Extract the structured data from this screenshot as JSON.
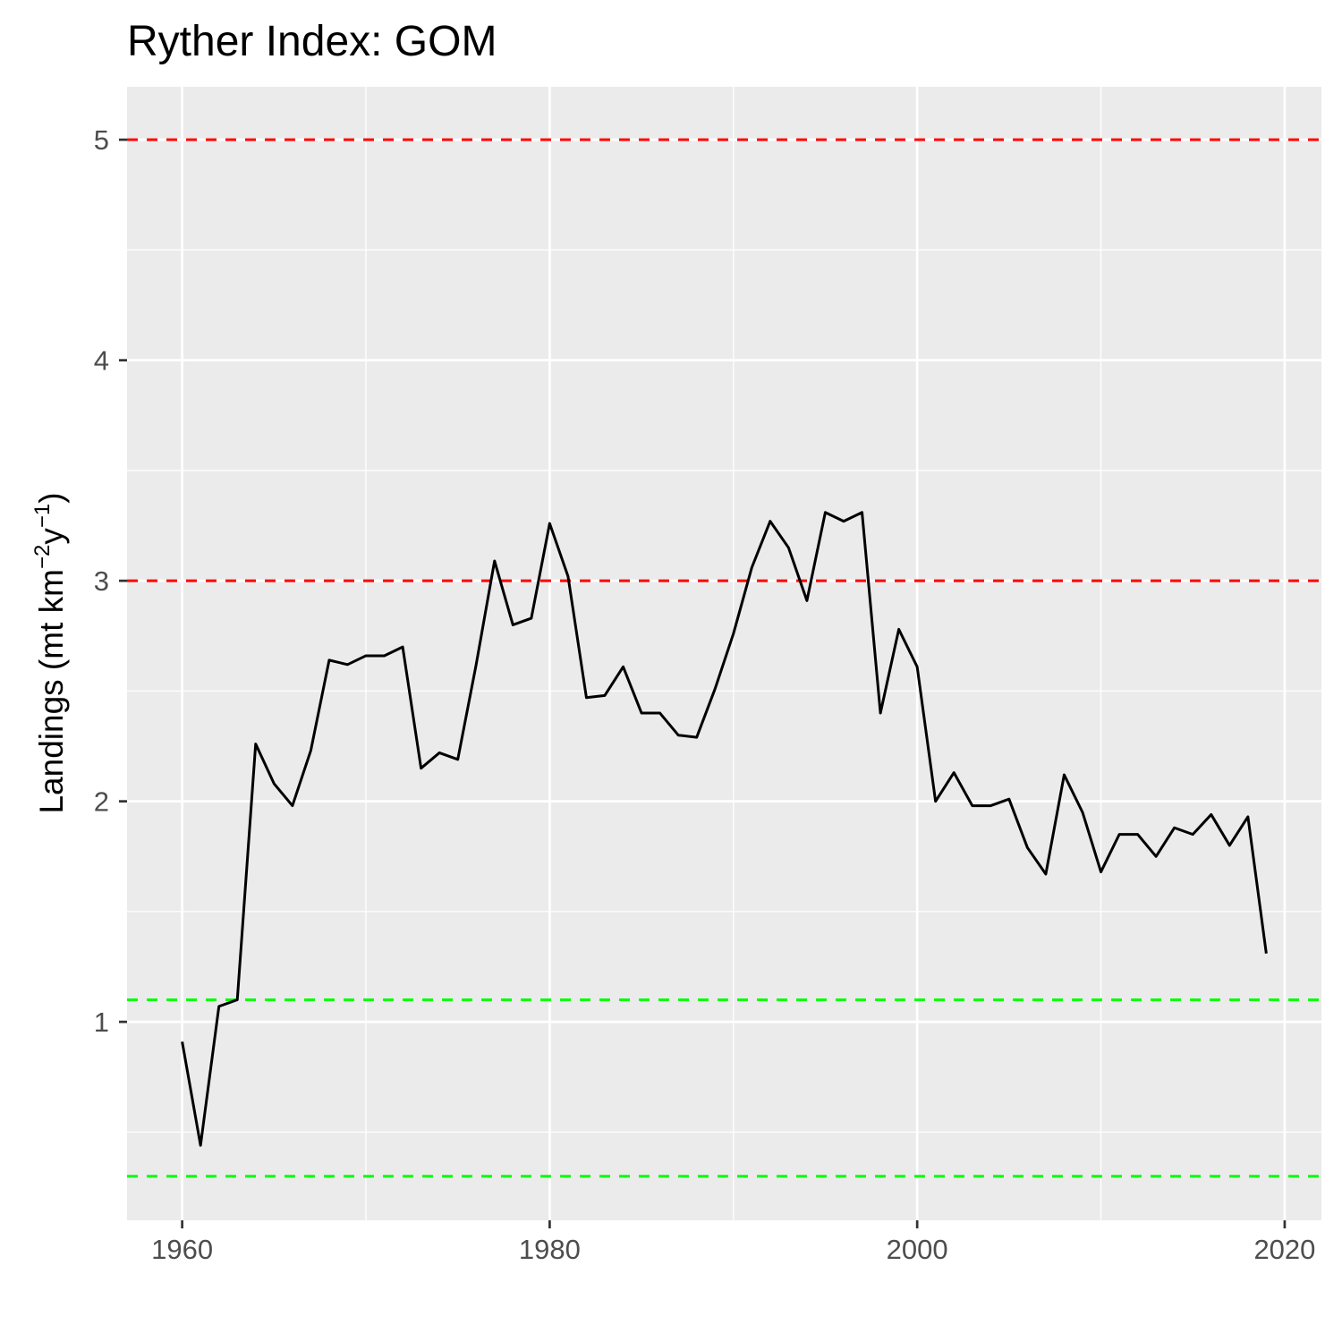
{
  "chart_data": {
    "type": "line",
    "title": "Ryther Index: GOM",
    "xlabel": "",
    "ylabel": {
      "prefix": "Landings (mt km",
      "sup1": "−2",
      "middle": "y",
      "sup2": "−1",
      "suffix": ")"
    },
    "xlim": [
      1957,
      2022
    ],
    "ylim": [
      0.1,
      5.24
    ],
    "x_ticks": [
      1960,
      1980,
      2000,
      2020
    ],
    "y_ticks": [
      1,
      2,
      3,
      4,
      5
    ],
    "grid": true,
    "legend": "none",
    "colors": {
      "panel": "#ebebeb",
      "grid": "#ffffff",
      "line": "#000000",
      "red_ref": "#ff0000",
      "green_ref": "#00ff00",
      "tick_text": "#4d4d4d"
    },
    "reference_lines": [
      {
        "y": 5,
        "color": "#ff0000",
        "style": "dashed"
      },
      {
        "y": 3,
        "color": "#ff0000",
        "style": "dashed"
      },
      {
        "y": 1.1,
        "color": "#00ff00",
        "style": "dashed"
      },
      {
        "y": 0.3,
        "color": "#00ff00",
        "style": "dashed"
      }
    ],
    "series": [
      {
        "x": [
          1960,
          1961,
          1962,
          1963,
          1964,
          1965,
          1966,
          1967,
          1968,
          1969,
          1970,
          1971,
          1972,
          1973,
          1974,
          1975,
          1976,
          1977,
          1978,
          1979,
          1980,
          1981,
          1982,
          1983,
          1984,
          1985,
          1986,
          1987,
          1988,
          1989,
          1990,
          1991,
          1992,
          1993,
          1994,
          1995,
          1996,
          1997,
          1998,
          1999,
          2000,
          2001,
          2002,
          2003,
          2004,
          2005,
          2006,
          2007,
          2008,
          2009,
          2010,
          2011,
          2012,
          2013,
          2014,
          2015,
          2016,
          2017,
          2018,
          2019
        ],
        "values": [
          0.91,
          0.44,
          1.07,
          1.1,
          2.26,
          2.08,
          1.98,
          2.23,
          2.64,
          2.62,
          2.66,
          2.66,
          2.7,
          2.15,
          2.22,
          2.19,
          2.62,
          3.09,
          2.8,
          2.83,
          3.26,
          3.02,
          2.47,
          2.48,
          2.61,
          2.4,
          2.4,
          2.3,
          2.29,
          2.51,
          2.76,
          3.06,
          3.27,
          3.15,
          2.91,
          3.31,
          3.27,
          3.31,
          2.4,
          2.78,
          2.61,
          2.0,
          2.13,
          1.98,
          1.98,
          2.01,
          1.79,
          1.67,
          2.12,
          1.95,
          1.68,
          1.85,
          1.85,
          1.75,
          1.88,
          1.85,
          1.94,
          1.8,
          1.93,
          1.31
        ]
      }
    ]
  }
}
